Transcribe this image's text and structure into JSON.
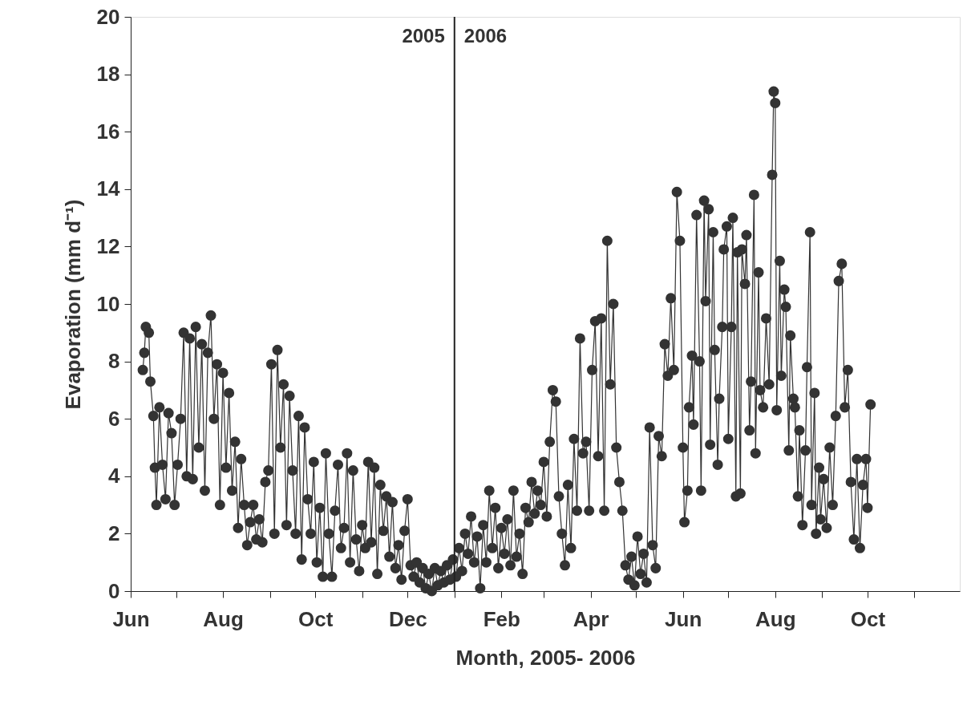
{
  "chart_data": {
    "type": "line",
    "xlabel": "Month, 2005- 2006",
    "ylabel": "Evaporation (mm d⁻¹)",
    "xlim": [
      "2005-06-01",
      "2006-12-01"
    ],
    "ylim": [
      0,
      20
    ],
    "yticks": [
      0,
      2,
      4,
      6,
      8,
      10,
      12,
      14,
      16,
      18,
      20
    ],
    "xticks": [
      {
        "value": "2005-06-01",
        "label": "Jun"
      },
      {
        "value": "2005-07-01",
        "label": null
      },
      {
        "value": "2005-08-01",
        "label": "Aug"
      },
      {
        "value": "2005-09-01",
        "label": null
      },
      {
        "value": "2005-10-01",
        "label": "Oct"
      },
      {
        "value": "2005-11-01",
        "label": null
      },
      {
        "value": "2005-12-01",
        "label": "Dec"
      },
      {
        "value": "2006-01-01",
        "label": null
      },
      {
        "value": "2006-02-01",
        "label": "Feb"
      },
      {
        "value": "2006-03-01",
        "label": null
      },
      {
        "value": "2006-04-01",
        "label": "Apr"
      },
      {
        "value": "2006-05-01",
        "label": null
      },
      {
        "value": "2006-06-01",
        "label": "Jun"
      },
      {
        "value": "2006-07-01",
        "label": null
      },
      {
        "value": "2006-08-01",
        "label": "Aug"
      },
      {
        "value": "2006-09-01",
        "label": null
      },
      {
        "value": "2006-10-01",
        "label": "Oct"
      },
      {
        "value": "2006-11-01",
        "label": null
      }
    ],
    "grid": false,
    "marker": "circle",
    "line_style": "solid",
    "ref_lines": [
      {
        "axis": "x",
        "value": "2006-01-01",
        "color": "#222222"
      }
    ],
    "annotations": [
      {
        "text": "2005",
        "x": "2006-01-01",
        "y": 19.3
      },
      {
        "text": "2006",
        "x": "2006-01-01",
        "y": 19.3
      }
    ],
    "series": [
      {
        "color": "#333333",
        "x": [
          "2005-06-09",
          "2005-06-10",
          "2005-06-11",
          "2005-06-13",
          "2005-06-14",
          "2005-06-16",
          "2005-06-17",
          "2005-06-18",
          "2005-06-20",
          "2005-06-22",
          "2005-06-24",
          "2005-06-26",
          "2005-06-28",
          "2005-06-30",
          "2005-07-02",
          "2005-07-04",
          "2005-07-06",
          "2005-07-08",
          "2005-07-10",
          "2005-07-12",
          "2005-07-14",
          "2005-07-16",
          "2005-07-18",
          "2005-07-20",
          "2005-07-22",
          "2005-07-24",
          "2005-07-26",
          "2005-07-28",
          "2005-07-30",
          "2005-08-01",
          "2005-08-03",
          "2005-08-05",
          "2005-08-07",
          "2005-08-09",
          "2005-08-11",
          "2005-08-13",
          "2005-08-15",
          "2005-08-17",
          "2005-08-19",
          "2005-08-21",
          "2005-08-23",
          "2005-08-25",
          "2005-08-27",
          "2005-08-29",
          "2005-08-31",
          "2005-09-02",
          "2005-09-04",
          "2005-09-06",
          "2005-09-08",
          "2005-09-10",
          "2005-09-12",
          "2005-09-14",
          "2005-09-16",
          "2005-09-18",
          "2005-09-20",
          "2005-09-22",
          "2005-09-24",
          "2005-09-26",
          "2005-09-28",
          "2005-09-30",
          "2005-10-02",
          "2005-10-04",
          "2005-10-06",
          "2005-10-08",
          "2005-10-10",
          "2005-10-12",
          "2005-10-14",
          "2005-10-16",
          "2005-10-18",
          "2005-10-20",
          "2005-10-22",
          "2005-10-24",
          "2005-10-26",
          "2005-10-28",
          "2005-10-30",
          "2005-11-01",
          "2005-11-03",
          "2005-11-05",
          "2005-11-07",
          "2005-11-09",
          "2005-11-11",
          "2005-11-13",
          "2005-11-15",
          "2005-11-17",
          "2005-11-19",
          "2005-11-21",
          "2005-11-23",
          "2005-11-25",
          "2005-11-27",
          "2005-11-29",
          "2005-12-01",
          "2005-12-03",
          "2005-12-05",
          "2005-12-07",
          "2005-12-09",
          "2005-12-11",
          "2005-12-13",
          "2005-12-15",
          "2005-12-17",
          "2005-12-19",
          "2005-12-21",
          "2005-12-23",
          "2005-12-25",
          "2005-12-27",
          "2005-12-29",
          "2005-12-31",
          "2006-01-02",
          "2006-01-04",
          "2006-01-06",
          "2006-01-08",
          "2006-01-10",
          "2006-01-12",
          "2006-01-14",
          "2006-01-16",
          "2006-01-18",
          "2006-01-20",
          "2006-01-22",
          "2006-01-24",
          "2006-01-26",
          "2006-01-28",
          "2006-01-30",
          "2006-02-01",
          "2006-02-03",
          "2006-02-05",
          "2006-02-07",
          "2006-02-09",
          "2006-02-11",
          "2006-02-13",
          "2006-02-15",
          "2006-02-17",
          "2006-02-19",
          "2006-02-21",
          "2006-02-23",
          "2006-02-25",
          "2006-02-27",
          "2006-03-01",
          "2006-03-03",
          "2006-03-05",
          "2006-03-07",
          "2006-03-09",
          "2006-03-11",
          "2006-03-13",
          "2006-03-15",
          "2006-03-17",
          "2006-03-19",
          "2006-03-21",
          "2006-03-23",
          "2006-03-25",
          "2006-03-27",
          "2006-03-29",
          "2006-03-31",
          "2006-04-02",
          "2006-04-04",
          "2006-04-06",
          "2006-04-08",
          "2006-04-10",
          "2006-04-12",
          "2006-04-14",
          "2006-04-16",
          "2006-04-18",
          "2006-04-20",
          "2006-04-22",
          "2006-04-24",
          "2006-04-26",
          "2006-04-28",
          "2006-04-30",
          "2006-05-02",
          "2006-05-04",
          "2006-05-06",
          "2006-05-08",
          "2006-05-10",
          "2006-05-12",
          "2006-05-14",
          "2006-05-16",
          "2006-05-18",
          "2006-05-20",
          "2006-05-22",
          "2006-05-24",
          "2006-05-26",
          "2006-05-28",
          "2006-05-30",
          "2006-06-01",
          "2006-06-02",
          "2006-06-04",
          "2006-06-05",
          "2006-06-07",
          "2006-06-08",
          "2006-06-10",
          "2006-06-12",
          "2006-06-13",
          "2006-06-15",
          "2006-06-16",
          "2006-06-18",
          "2006-06-19",
          "2006-06-21",
          "2006-06-22",
          "2006-06-24",
          "2006-06-25",
          "2006-06-27",
          "2006-06-28",
          "2006-06-30",
          "2006-07-01",
          "2006-07-03",
          "2006-07-04",
          "2006-07-06",
          "2006-07-07",
          "2006-07-09",
          "2006-07-10",
          "2006-07-12",
          "2006-07-13",
          "2006-07-15",
          "2006-07-16",
          "2006-07-18",
          "2006-07-19",
          "2006-07-21",
          "2006-07-22",
          "2006-07-24",
          "2006-07-26",
          "2006-07-28",
          "2006-07-30",
          "2006-07-31",
          "2006-08-01",
          "2006-08-02",
          "2006-08-04",
          "2006-08-05",
          "2006-08-07",
          "2006-08-08",
          "2006-08-10",
          "2006-08-11",
          "2006-08-13",
          "2006-08-14",
          "2006-08-16",
          "2006-08-17",
          "2006-08-19",
          "2006-08-21",
          "2006-08-22",
          "2006-08-24",
          "2006-08-25",
          "2006-08-27",
          "2006-08-28",
          "2006-08-30",
          "2006-08-31",
          "2006-09-02",
          "2006-09-04",
          "2006-09-06",
          "2006-09-08",
          "2006-09-10",
          "2006-09-12",
          "2006-09-14",
          "2006-09-16",
          "2006-09-18",
          "2006-09-20",
          "2006-09-22",
          "2006-09-24",
          "2006-09-26",
          "2006-09-28",
          "2006-09-30",
          "2006-10-01",
          "2006-10-03"
        ],
        "values": [
          7.7,
          8.3,
          9.2,
          9.0,
          7.3,
          6.1,
          4.3,
          3.0,
          6.4,
          4.4,
          3.2,
          6.2,
          5.5,
          3.0,
          4.4,
          6.0,
          9.0,
          4.0,
          8.8,
          3.9,
          9.2,
          5.0,
          8.6,
          3.5,
          8.3,
          9.6,
          6.0,
          7.9,
          3.0,
          7.6,
          4.3,
          6.9,
          3.5,
          5.2,
          2.2,
          4.6,
          3.0,
          1.6,
          2.4,
          3.0,
          1.8,
          2.5,
          1.7,
          3.8,
          4.2,
          7.9,
          2.0,
          8.4,
          5.0,
          7.2,
          2.3,
          6.8,
          4.2,
          2.0,
          6.1,
          1.1,
          5.7,
          3.2,
          2.0,
          4.5,
          1.0,
          2.9,
          0.5,
          4.8,
          2.0,
          0.5,
          2.8,
          4.4,
          1.5,
          2.2,
          4.8,
          1.0,
          4.2,
          1.8,
          0.7,
          2.3,
          1.5,
          4.5,
          1.7,
          4.3,
          0.6,
          3.7,
          2.1,
          3.3,
          1.2,
          3.1,
          0.8,
          1.6,
          0.4,
          2.1,
          3.2,
          0.9,
          0.5,
          1.0,
          0.3,
          0.8,
          0.1,
          0.6,
          0.0,
          0.8,
          0.2,
          0.7,
          0.3,
          0.9,
          0.4,
          1.1,
          0.5,
          1.5,
          0.7,
          2.0,
          1.3,
          2.6,
          1.0,
          1.9,
          0.1,
          2.3,
          1.0,
          3.5,
          1.5,
          2.9,
          0.8,
          2.2,
          1.3,
          2.5,
          0.9,
          3.5,
          1.2,
          2.0,
          0.6,
          2.9,
          2.4,
          3.8,
          2.7,
          3.5,
          3.0,
          4.5,
          2.6,
          5.2,
          7.0,
          6.6,
          3.3,
          2.0,
          0.9,
          3.7,
          1.5,
          5.3,
          2.8,
          8.8,
          4.8,
          5.2,
          2.8,
          7.7,
          9.4,
          4.7,
          9.5,
          2.8,
          12.2,
          7.2,
          10.0,
          5.0,
          3.8,
          2.8,
          0.9,
          0.4,
          1.2,
          0.2,
          1.9,
          0.6,
          1.3,
          0.3,
          5.7,
          1.6,
          0.8,
          5.4,
          4.7,
          8.6,
          7.5,
          10.2,
          7.7,
          13.9,
          12.2,
          5.0,
          2.4,
          3.5,
          6.4,
          8.2,
          5.8,
          13.1,
          8.0,
          3.5,
          13.6,
          10.1,
          13.3,
          5.1,
          12.5,
          8.4,
          4.4,
          6.7,
          9.2,
          11.9,
          12.7,
          5.3,
          9.2,
          13.0,
          3.3,
          11.8,
          3.4,
          11.9,
          10.7,
          12.4,
          5.6,
          7.3,
          13.8,
          4.8,
          11.1,
          7.0,
          6.4,
          9.5,
          7.2,
          14.5,
          17.4,
          17.0,
          6.3,
          11.5,
          7.5,
          10.5,
          9.9,
          4.9,
          8.9,
          6.7,
          6.4,
          3.3,
          5.6,
          2.3,
          4.9,
          7.8,
          12.5,
          3.0,
          6.9,
          2.0,
          4.3,
          2.5,
          3.9,
          2.2,
          5.0,
          3.0,
          6.1,
          10.8,
          11.4,
          6.4,
          7.7,
          3.8,
          1.8,
          4.6,
          1.5,
          3.7,
          4.6,
          2.9,
          6.5
        ]
      }
    ]
  }
}
